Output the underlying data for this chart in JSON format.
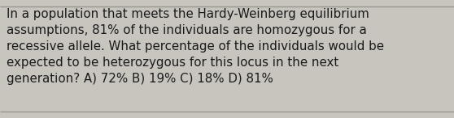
{
  "text": "In a population that meets the Hardy-Weinberg equilibrium\nassumptions, 81% of the individuals are homozygous for a\nrecessive allele. What percentage of the individuals would be\nexpected to be heterozygous for this locus in the next\ngeneration? A) 72% B) 19% C) 18% D) 81%",
  "background_color": "#c8c5bf",
  "text_color": "#1a1a1a",
  "font_size": 10.8,
  "border_color": "#9a9690",
  "fig_width": 5.58,
  "fig_height": 1.46,
  "dpi": 100
}
